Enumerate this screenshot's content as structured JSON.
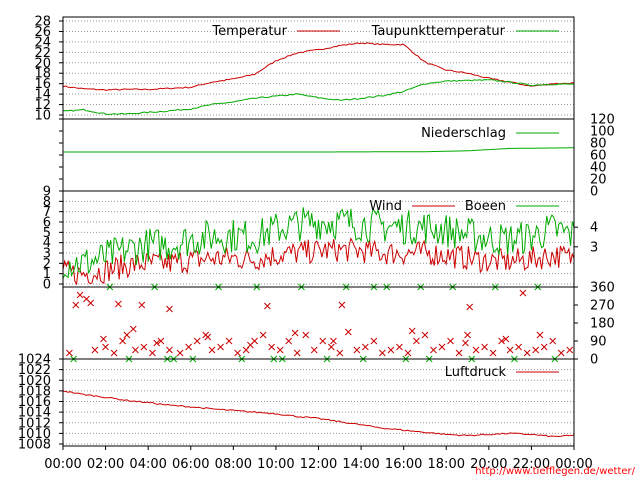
{
  "footer": {
    "url": "http://www.tiefflegen.de/wetter/"
  },
  "colors": {
    "red": "#cc0000",
    "green": "#00aa00",
    "grid": "#9a9a9a"
  },
  "time_axis": {
    "tick_labels": [
      "00:00",
      "02:00",
      "04:00",
      "06:00",
      "08:00",
      "10:00",
      "12:00",
      "14:00",
      "16:00",
      "18:00",
      "20:00",
      "22:00",
      "00:00"
    ],
    "hours": [
      0,
      24
    ]
  },
  "chart_data": [
    {
      "type": "line",
      "id": "temperature",
      "x_unit": "hour",
      "ylim": [
        10,
        28
      ],
      "y_ticks": [
        "10",
        "12",
        "14",
        "16",
        "18",
        "20",
        "22",
        "24",
        "26",
        "28"
      ],
      "grid": true,
      "legend_position": "top",
      "series": [
        {
          "name": "Temperatur",
          "color": "#cc0000",
          "x": [
            0,
            1,
            2,
            3,
            4,
            5,
            6,
            7,
            8,
            9,
            10,
            11,
            12,
            13,
            14,
            15,
            16,
            17,
            18,
            19,
            20,
            21,
            22,
            23,
            24
          ],
          "values": [
            15.5,
            15.0,
            14.8,
            14.9,
            14.9,
            15.1,
            15.3,
            16.3,
            16.9,
            17.8,
            20.4,
            21.9,
            22.5,
            23.3,
            23.8,
            23.5,
            23.5,
            20.1,
            18.6,
            18.0,
            17.0,
            16.3,
            15.5,
            16.0,
            16.1
          ]
        },
        {
          "name": "Taupunkttemperatur",
          "color": "#00aa00",
          "x": [
            0,
            1,
            2,
            3,
            4,
            5,
            6,
            7,
            8,
            9,
            10,
            11,
            12,
            13,
            14,
            15,
            16,
            17,
            18,
            19,
            20,
            21,
            22,
            23,
            24
          ],
          "values": [
            10.7,
            11.0,
            10.2,
            10.2,
            10.5,
            10.8,
            11.2,
            12.0,
            12.5,
            13.2,
            13.6,
            14.0,
            13.3,
            12.8,
            13.2,
            13.7,
            14.5,
            16.0,
            16.5,
            16.6,
            16.7,
            16.3,
            15.7,
            15.9,
            15.9
          ]
        }
      ]
    },
    {
      "type": "line",
      "id": "precipitation",
      "x_unit": "hour",
      "ylim": [
        0,
        120
      ],
      "y_ticks": [
        "0",
        "20",
        "40",
        "60",
        "80",
        "100",
        "120"
      ],
      "grid": false,
      "legend_position": "top-right",
      "series": [
        {
          "name": "Niederschlag",
          "color": "#00aa00",
          "x": [
            0,
            12,
            17,
            19,
            21,
            24
          ],
          "values": [
            65,
            65,
            65.5,
            67,
            71,
            72
          ]
        }
      ]
    },
    {
      "type": "line",
      "id": "wind",
      "x_unit": "hour",
      "ylim": [
        0,
        9
      ],
      "y_ticks": [
        "0",
        "1",
        "2",
        "3",
        "4",
        "5",
        "6",
        "7",
        "8",
        "9"
      ],
      "right_ticks": [
        "3",
        "4"
      ],
      "grid": true,
      "legend_position": "top",
      "series": [
        {
          "name": "Wind",
          "color": "#cc0000",
          "x": [
            0,
            1,
            2,
            3,
            4,
            5,
            6,
            7,
            8,
            9,
            10,
            11,
            12,
            13,
            14,
            15,
            16,
            17,
            18,
            19,
            20,
            21,
            22,
            23,
            24
          ],
          "values": [
            1.1,
            1.0,
            1.3,
            1.8,
            2.0,
            2.0,
            2.3,
            2.5,
            2.5,
            2.4,
            2.8,
            3.0,
            3.2,
            3.3,
            3.2,
            3.0,
            3.0,
            3.0,
            2.8,
            2.5,
            2.2,
            2.2,
            2.4,
            2.8,
            2.5
          ]
        },
        {
          "name": "Boeen",
          "color": "#00aa00",
          "x": [
            0,
            1,
            2,
            3,
            4,
            5,
            6,
            7,
            8,
            9,
            10,
            11,
            12,
            13,
            14,
            15,
            16,
            17,
            18,
            19,
            20,
            21,
            22,
            23,
            24
          ],
          "values": [
            2.2,
            2.0,
            2.6,
            3.3,
            3.8,
            3.8,
            4.3,
            4.6,
            4.7,
            4.5,
            5.3,
            5.8,
            6.0,
            6.0,
            5.8,
            5.6,
            5.5,
            5.5,
            5.2,
            4.8,
            4.4,
            4.3,
            4.6,
            5.3,
            4.7
          ]
        }
      ]
    },
    {
      "type": "scatter",
      "id": "wind-direction",
      "x_unit": "hour",
      "ylim": [
        0,
        360
      ],
      "right_ticks": [
        "0",
        "90",
        "180",
        "270",
        "360"
      ],
      "grid": false,
      "series": [
        {
          "name": "",
          "color": "#cc0000",
          "x": [
            0.3,
            0.8,
            1.1,
            1.5,
            2.0,
            2.4,
            2.8,
            3.0,
            3.4,
            3.8,
            4.2,
            4.6,
            5.0,
            5.5,
            5.9,
            6.3,
            6.7,
            7.0,
            7.4,
            7.8,
            8.2,
            8.6,
            9.0,
            9.4,
            9.8,
            10.2,
            10.6,
            11.0,
            11.4,
            11.8,
            12.2,
            12.6,
            13.0,
            13.4,
            13.8,
            14.2,
            14.6,
            15.0,
            15.4,
            15.8,
            16.2,
            16.6,
            17.0,
            17.4,
            17.8,
            18.2,
            18.6,
            19.0,
            19.4,
            19.8,
            20.2,
            20.6,
            21.0,
            21.4,
            21.8,
            22.2,
            22.6,
            23.0,
            23.4,
            23.8,
            1.9,
            3.3,
            4.4,
            6.8,
            8.8,
            10.9,
            12.7,
            16.4,
            18.9,
            20.8,
            22.4,
            0.6,
            1.3,
            3.7,
            5.0,
            13.1,
            19.1,
            21.6,
            2.6,
            9.6
          ],
          "values": [
            30,
            320,
            300,
            45,
            60,
            30,
            90,
            120,
            45,
            60,
            30,
            90,
            45,
            30,
            60,
            90,
            120,
            45,
            60,
            90,
            30,
            45,
            90,
            120,
            60,
            45,
            90,
            30,
            120,
            45,
            90,
            60,
            30,
            135,
            45,
            60,
            90,
            30,
            45,
            60,
            30,
            90,
            120,
            45,
            60,
            90,
            30,
            120,
            45,
            60,
            30,
            90,
            45,
            60,
            30,
            45,
            60,
            90,
            30,
            45,
            100,
            150,
            80,
            110,
            70,
            130,
            90,
            140,
            80,
            100,
            120,
            270,
            280,
            270,
            250,
            270,
            260,
            330,
            275,
            265
          ]
        },
        {
          "name": "",
          "color": "#00aa00",
          "x": [
            0.5,
            2.2,
            3.1,
            4.3,
            5.2,
            6.1,
            7.3,
            8.4,
            9.1,
            10.3,
            11.2,
            12.4,
            13.3,
            14.1,
            15.2,
            16.1,
            17.2,
            18.3,
            19.2,
            20.3,
            21.2,
            22.3,
            23.1,
            4.9,
            9.9,
            14.6,
            16.8
          ],
          "values": [
            0,
            360,
            0,
            360,
            0,
            0,
            360,
            0,
            360,
            0,
            360,
            0,
            360,
            0,
            360,
            0,
            0,
            360,
            0,
            360,
            0,
            360,
            0,
            0,
            0,
            360,
            360
          ]
        }
      ]
    },
    {
      "type": "line",
      "id": "pressure",
      "x_unit": "hour",
      "ylim": [
        1008,
        1024
      ],
      "y_ticks": [
        "1008",
        "1010",
        "1012",
        "1014",
        "1016",
        "1018",
        "1020",
        "1022",
        "1024"
      ],
      "grid": true,
      "legend_position": "top-right",
      "series": [
        {
          "name": "Luftdruck",
          "color": "#cc0000",
          "x": [
            0,
            1,
            2,
            3,
            4,
            5,
            6,
            7,
            8,
            9,
            10,
            11,
            12,
            13,
            14,
            15,
            16,
            17,
            18,
            19,
            20,
            21,
            22,
            23,
            24
          ],
          "values": [
            1018.0,
            1017.3,
            1016.8,
            1016.2,
            1015.8,
            1015.3,
            1015.0,
            1014.6,
            1014.3,
            1014.0,
            1013.7,
            1013.2,
            1012.8,
            1012.2,
            1011.6,
            1011.0,
            1010.6,
            1010.2,
            1009.8,
            1009.6,
            1009.8,
            1010.0,
            1009.8,
            1009.4,
            1009.6
          ]
        }
      ]
    }
  ]
}
